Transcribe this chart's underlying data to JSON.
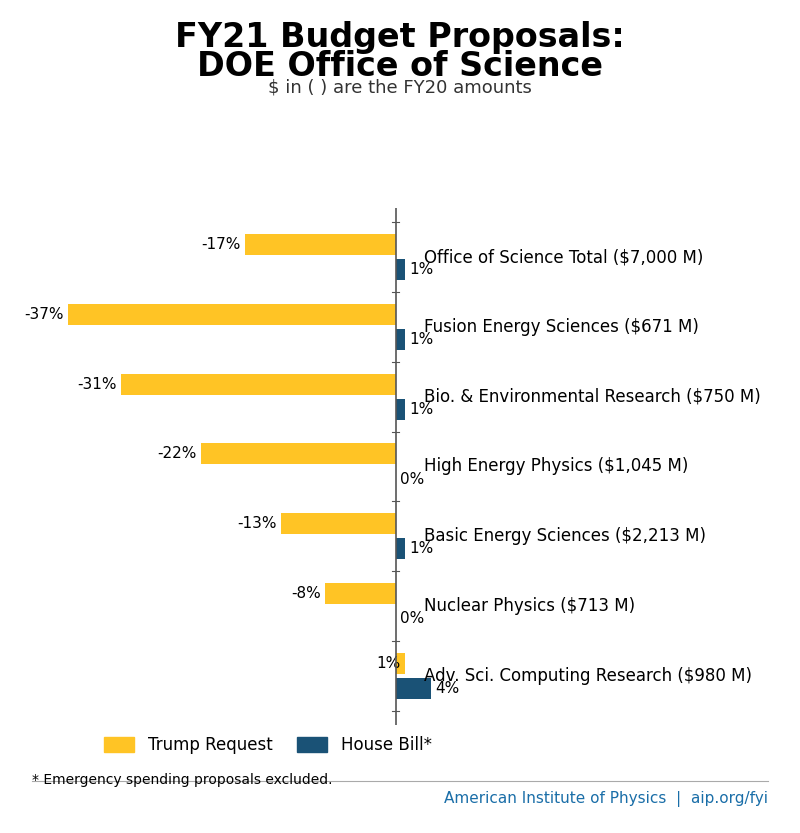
{
  "title_line1": "FY21 Budget Proposals:",
  "title_line2": "DOE Office of Science",
  "subtitle": "$ in ( ) are the FY20 amounts",
  "categories": [
    "Office of Science Total ($7,000 M)",
    "Fusion Energy Sciences ($671 M)",
    "Bio. & Environmental Research ($750 M)",
    "High Energy Physics ($1,045 M)",
    "Basic Energy Sciences ($2,213 M)",
    "Nuclear Physics ($713 M)",
    "Adv. Sci. Computing Research ($980 M)"
  ],
  "trump_values": [
    -17,
    -37,
    -31,
    -22,
    -13,
    -8,
    1
  ],
  "house_values": [
    1,
    1,
    1,
    0,
    1,
    0,
    4
  ],
  "trump_color": "#FFC425",
  "house_color": "#1A5276",
  "trump_label": "Trump Request",
  "house_label": "House Bill*",
  "footnote": "* Emergency spending proposals excluded.",
  "footer_text": "American Institute of Physics  |  aip.org/fyi",
  "footer_color": "#1A6EA8",
  "background_color": "#FFFFFF",
  "bar_height": 0.3,
  "bar_gap": 0.06,
  "xlim_left": -42,
  "xlim_right": 5,
  "title_fontsize": 24,
  "subtitle_fontsize": 13,
  "label_fontsize": 11,
  "category_fontsize": 12
}
